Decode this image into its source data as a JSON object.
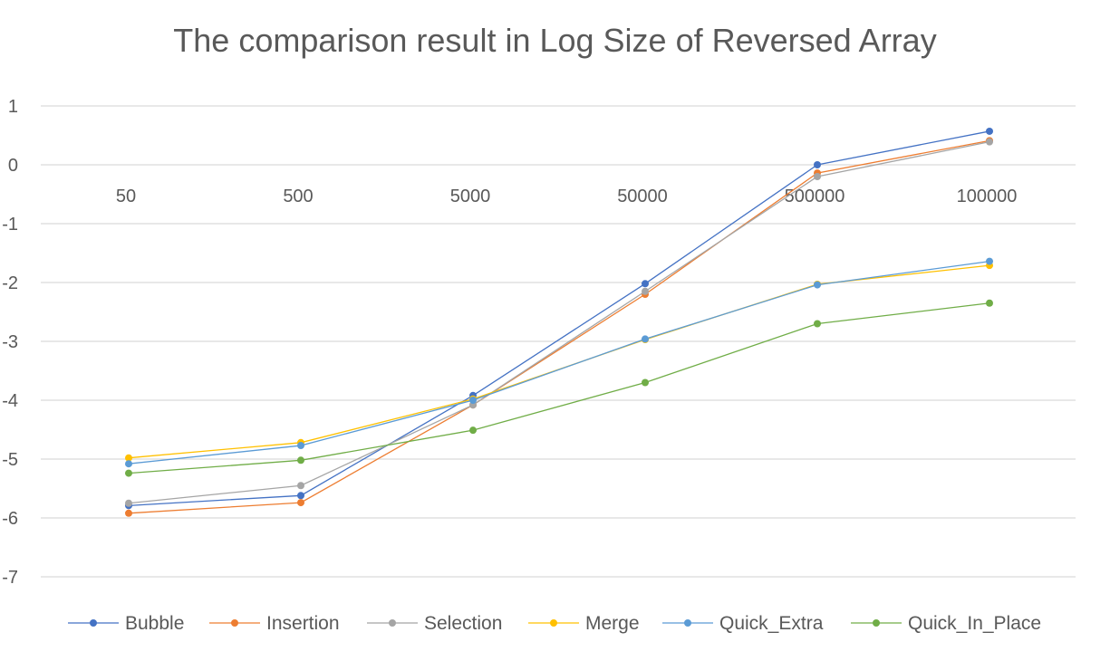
{
  "chart_data": {
    "type": "line",
    "title": "The comparison result in Log Size of Reversed Array",
    "xlabel": "",
    "ylabel": "",
    "categories": [
      "50",
      "500",
      "5000",
      "50000",
      "500000",
      "100000"
    ],
    "ylim": [
      -7,
      1
    ],
    "yticks": [
      1,
      0,
      -1,
      -2,
      -3,
      -4,
      -5,
      -6,
      -7
    ],
    "grid": true,
    "legend_position": "bottom",
    "series": [
      {
        "name": "Bubble",
        "color": "#4472C4",
        "values": [
          -5.79,
          -5.62,
          -3.92,
          -2.02,
          0.0,
          0.57
        ]
      },
      {
        "name": "Insertion",
        "color": "#ED7D31",
        "values": [
          -5.92,
          -5.74,
          -4.08,
          -2.2,
          -0.14,
          0.41
        ]
      },
      {
        "name": "Selection",
        "color": "#A5A5A5",
        "values": [
          -5.75,
          -5.45,
          -4.08,
          -2.15,
          -0.2,
          0.39
        ]
      },
      {
        "name": "Merge",
        "color": "#FFC000",
        "values": [
          -4.98,
          -4.72,
          -3.98,
          -2.97,
          -2.03,
          -1.71
        ]
      },
      {
        "name": "Quick_Extra",
        "color": "#5B9BD5",
        "values": [
          -5.08,
          -4.77,
          -4.0,
          -2.96,
          -2.04,
          -1.64
        ]
      },
      {
        "name": "Quick_In_Place",
        "color": "#70AD47",
        "values": [
          -5.24,
          -5.02,
          -4.51,
          -3.7,
          -2.7,
          -2.35
        ]
      }
    ]
  }
}
